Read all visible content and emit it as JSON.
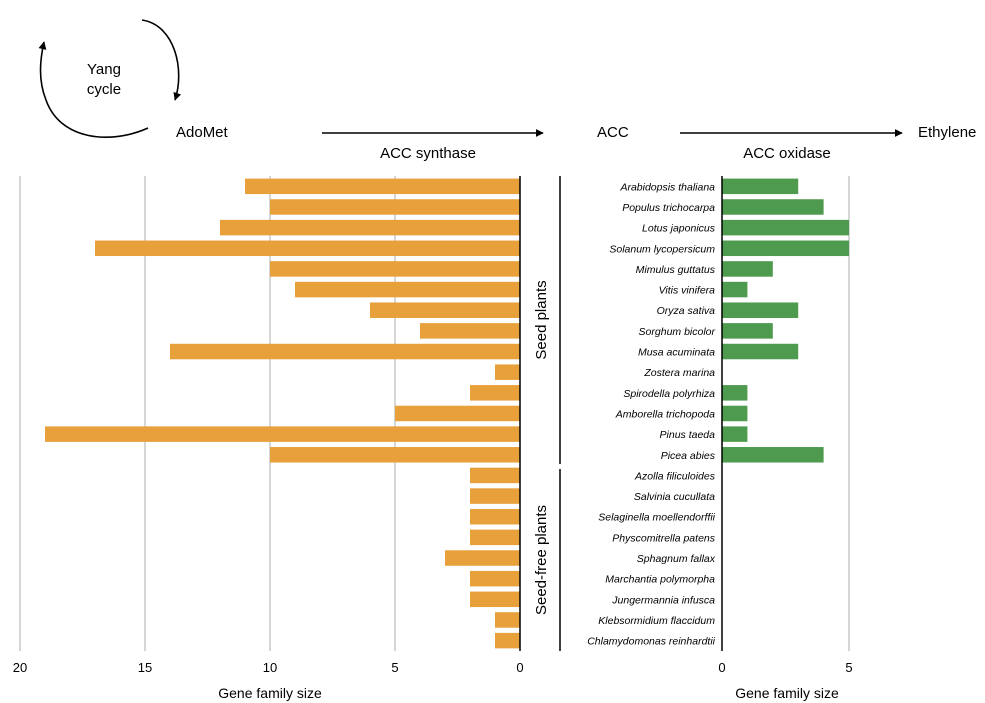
{
  "pathway": {
    "cycle_label_line1": "Yang",
    "cycle_label_line2": "cycle",
    "substrate": "AdoMet",
    "intermediate": "ACC",
    "product": "Ethylene",
    "enzyme1": "ACC synthase",
    "enzyme2": "ACC oxidase"
  },
  "groups": {
    "seed": "Seed plants",
    "seedfree": "Seed-free plants"
  },
  "colors": {
    "acs": "#E8A03A",
    "aco": "#4E9A4E",
    "grid": "#C8C8C8",
    "enzyme1_text": "#E8A03A",
    "enzyme2_text": "#4E9A4E"
  },
  "chart_data": [
    {
      "type": "bar",
      "orientation": "horizontal",
      "direction": "reversed",
      "categories": [
        "Arabidopsis thaliana",
        "Populus trichocarpa",
        "Lotus japonicus",
        "Solanum lycopersicum",
        "Mimulus guttatus",
        "Vitis vinifera",
        "Oryza sativa",
        "Sorghum bicolor",
        "Musa acuminata",
        "Zostera marina",
        "Spirodella polyrhiza",
        "Amborella trichopoda",
        "Pinus taeda",
        "Picea abies",
        "Azolla filiculoides",
        "Salvinia cucullata",
        "Selaginella moellendorffii",
        "Physcomitrella patens",
        "Sphagnum fallax",
        "Marchantia polymorpha",
        "Jungermannia infusca",
        "Klebsormidium flaccidum",
        "Chlamydomonas reinhardtii"
      ],
      "series": [
        {
          "name": "ACC synthase",
          "values": [
            11,
            10,
            12,
            17,
            10,
            9,
            6,
            4,
            14,
            1,
            2,
            5,
            19,
            10,
            2,
            2,
            2,
            2,
            3,
            2,
            2,
            1,
            1
          ]
        }
      ],
      "xlabel": "Gene family size",
      "xlim": [
        0,
        20
      ],
      "xticks": [
        20,
        15,
        10,
        5,
        0
      ],
      "grid": true
    },
    {
      "type": "bar",
      "orientation": "horizontal",
      "categories": [
        "Arabidopsis thaliana",
        "Populus trichocarpa",
        "Lotus japonicus",
        "Solanum lycopersicum",
        "Mimulus guttatus",
        "Vitis vinifera",
        "Oryza sativa",
        "Sorghum bicolor",
        "Musa acuminata",
        "Zostera marina",
        "Spirodella polyrhiza",
        "Amborella trichopoda",
        "Pinus taeda",
        "Picea abies",
        "Azolla filiculoides",
        "Salvinia cucullata",
        "Selaginella moellendorffii",
        "Physcomitrella patens",
        "Sphagnum fallax",
        "Marchantia polymorpha",
        "Jungermannia infusca",
        "Klebsormidium flaccidum",
        "Chlamydomonas reinhardtii"
      ],
      "series": [
        {
          "name": "ACC oxidase",
          "values": [
            3,
            4,
            5,
            5,
            2,
            1,
            3,
            2,
            3,
            0,
            1,
            1,
            1,
            4,
            0,
            0,
            0,
            0,
            0,
            0,
            0,
            0,
            0
          ]
        }
      ],
      "xlabel": "Gene family size",
      "xlim": [
        0,
        5
      ],
      "xticks": [
        0,
        5
      ],
      "grid": true
    }
  ]
}
